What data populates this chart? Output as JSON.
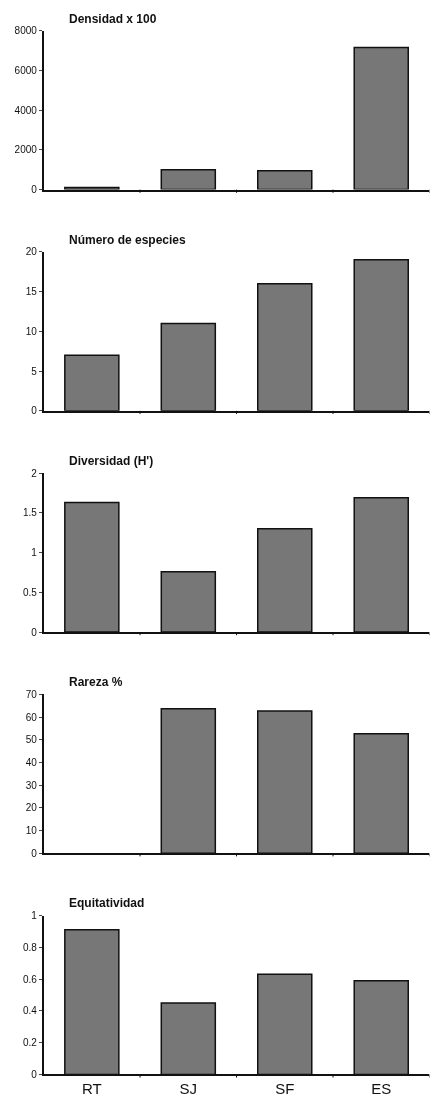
{
  "chart_data": [
    {
      "type": "bar",
      "title": "Densidad x 100",
      "categories": [
        null,
        null,
        null,
        null
      ],
      "values": [
        100,
        1000,
        950,
        7150
      ],
      "color": "#777777",
      "ylim": [
        0,
        8000
      ],
      "yticks": [
        0,
        2000,
        4000,
        6000,
        8000
      ],
      "tick_labels": "y"
    },
    {
      "type": "bar",
      "title": "Número de especies",
      "categories": [
        null,
        null,
        null,
        null
      ],
      "values": [
        7,
        11,
        16,
        19
      ],
      "color": "#777777",
      "ylim": [
        0,
        20
      ],
      "yticks": [
        0,
        5,
        10,
        15,
        20
      ],
      "tick_labels": "y"
    },
    {
      "type": "bar",
      "title": "Diversidad (H')",
      "categories": [
        null,
        null,
        null,
        null
      ],
      "values": [
        1.63,
        0.76,
        1.3,
        1.69
      ],
      "color": "#777777",
      "ylim": [
        0,
        2
      ],
      "yticks": [
        0,
        0.5,
        1,
        1.5,
        2
      ],
      "tick_labels": "y"
    },
    {
      "type": "bar",
      "title": "Rareza %",
      "categories": [
        null,
        null,
        null,
        null
      ],
      "values": [
        null,
        63.6,
        62.7,
        52.6
      ],
      "color": "#777777",
      "ylim": [
        0,
        70
      ],
      "yticks": [
        0,
        10,
        20,
        30,
        40,
        50,
        60,
        70
      ],
      "tick_labels": "y"
    },
    {
      "type": "bar",
      "title": "Equitatividad",
      "categories": [
        "RT",
        "SJ",
        "SF",
        "ES"
      ],
      "values": [
        0.91,
        0.45,
        0.63,
        0.59
      ],
      "color": "#777777",
      "ylim": [
        0,
        1
      ],
      "yticks": [
        0,
        0.2,
        0.4,
        0.6,
        0.8,
        1
      ]
    }
  ]
}
